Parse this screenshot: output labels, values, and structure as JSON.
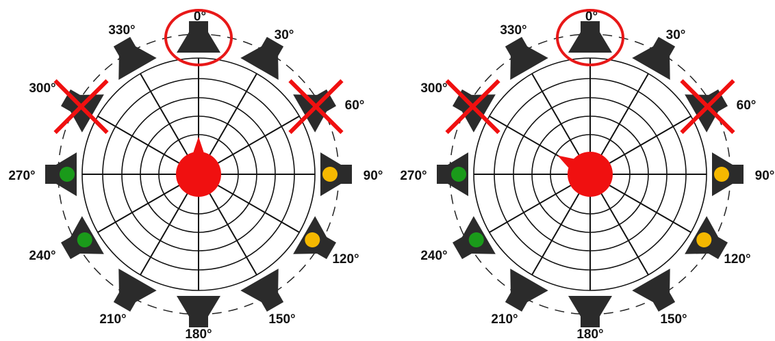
{
  "panels": [
    {
      "labels": [
        "0°",
        "30°",
        "60°",
        "90°",
        "120°",
        "150°",
        "180°",
        "210°",
        "240°",
        "270°",
        "300°",
        "330°"
      ]
    },
    {
      "labels": [
        "0°",
        "30°",
        "60°",
        "90°",
        "120°",
        "150°",
        "180°",
        "210°",
        "240°",
        "270°",
        "300°",
        "330°"
      ]
    }
  ]
}
